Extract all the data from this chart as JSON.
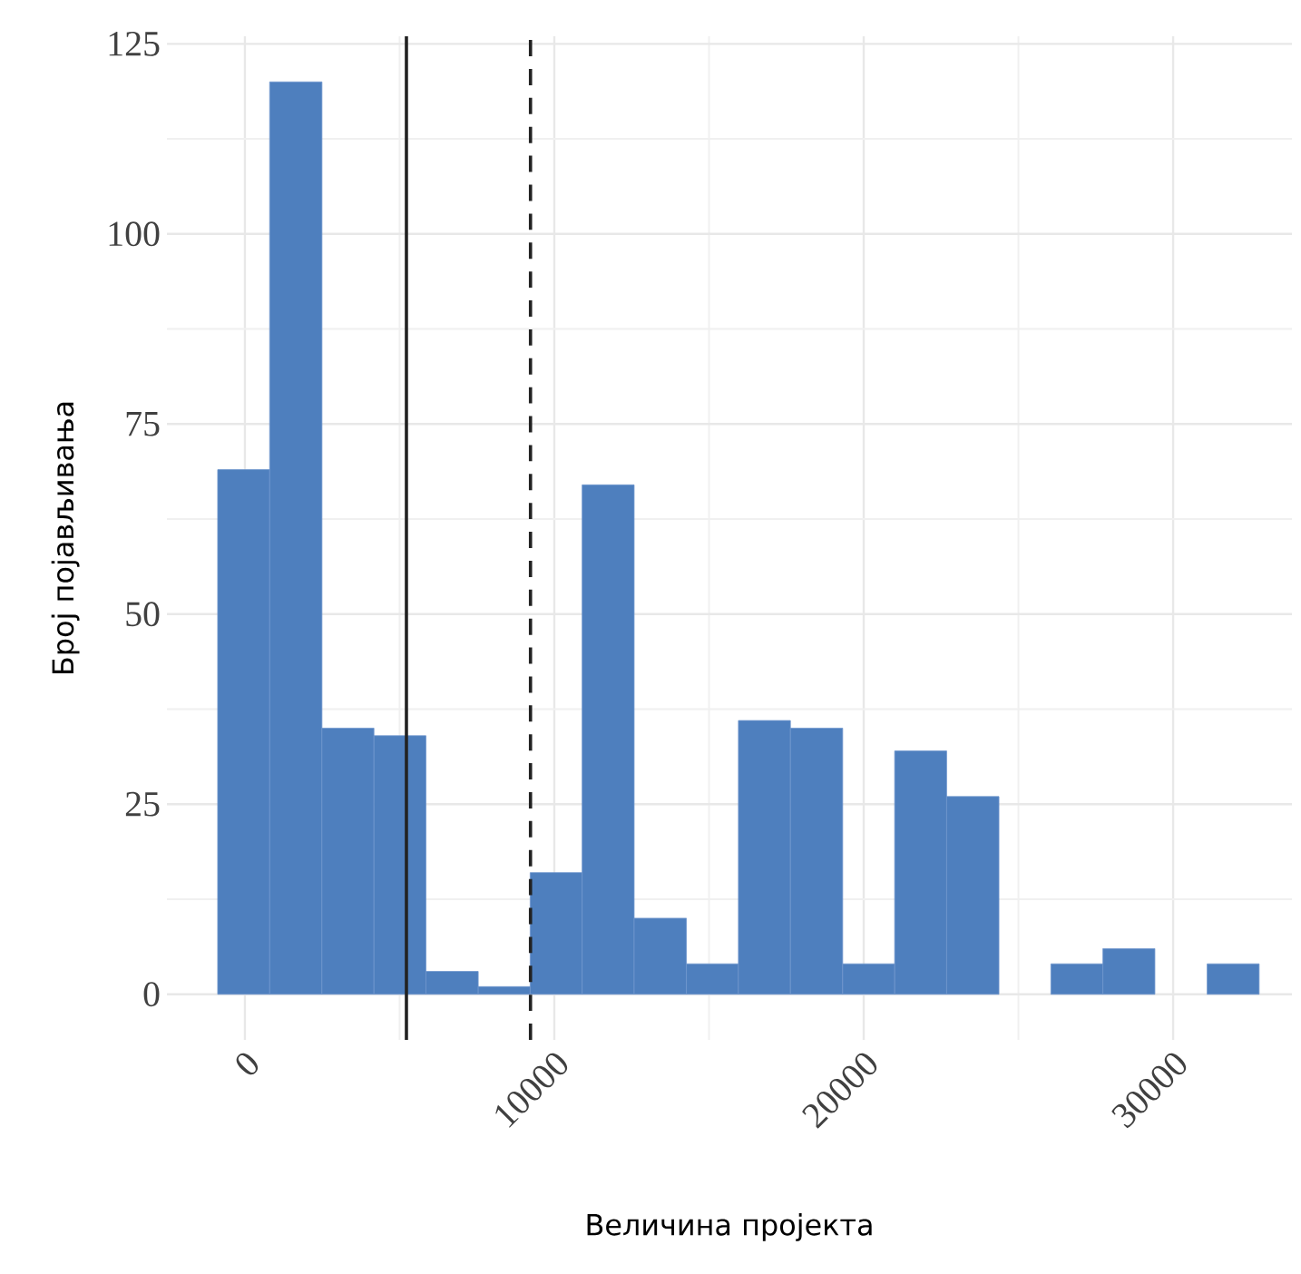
{
  "chart_data": {
    "type": "histogram",
    "xlabel": "Величина пројекта",
    "ylabel": "Број појављивања",
    "bins": [
      -880,
      800,
      2490,
      4170,
      5850,
      7540,
      9220,
      10900,
      12580,
      14270,
      15950,
      17630,
      19320,
      21000,
      22680,
      24370,
      26050,
      27730,
      29410,
      31100,
      32780
    ],
    "values": [
      69,
      120,
      35,
      34,
      3,
      1,
      16,
      67,
      10,
      4,
      36,
      35,
      4,
      32,
      26,
      0,
      4,
      6,
      0,
      4
    ],
    "color": "#4e7fbe",
    "xlim": [
      -2520,
      33840
    ],
    "ylim": [
      -6,
      126
    ],
    "xticks": [
      0,
      {
        "value": 5000,
        "label": null
      },
      10000,
      {
        "value": 15000,
        "label": null
      },
      20000,
      {
        "value": 25000,
        "label": null
      },
      30000
    ],
    "yticks": [
      0,
      {
        "value": 12.5,
        "label": null
      },
      25,
      {
        "value": 37.5,
        "label": null
      },
      50,
      {
        "value": 62.5,
        "label": null
      },
      75,
      {
        "value": 87.5,
        "label": null
      },
      100,
      {
        "value": 112.5,
        "label": null
      },
      125
    ],
    "ref_lines": [
      {
        "axis": "x",
        "value": 5220,
        "color": "#222222",
        "line_style": "solid"
      },
      {
        "axis": "x",
        "value": 9230,
        "color": "#222222",
        "line_style": "dashed"
      }
    ],
    "grid": true
  }
}
